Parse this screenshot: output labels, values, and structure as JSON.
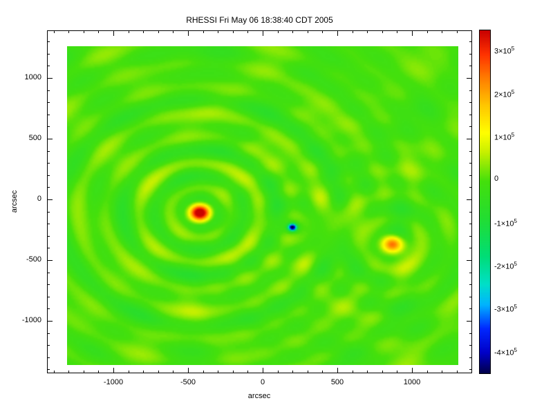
{
  "title": "RHESSI Fri May 06 18:38:40 CDT 2005",
  "axes": {
    "xlabel": "arcsec",
    "ylabel": "arcsec",
    "x_ticks": [
      {
        "label": "-1000",
        "value": -1000
      },
      {
        "label": "-500",
        "value": -500
      },
      {
        "label": "0",
        "value": 0
      },
      {
        "label": "500",
        "value": 500
      },
      {
        "label": "1000",
        "value": 1000
      }
    ],
    "y_ticks": [
      {
        "label": "1000",
        "value": 1000
      },
      {
        "label": "500",
        "value": 500
      },
      {
        "label": "0",
        "value": 0
      },
      {
        "label": "-500",
        "value": -500
      },
      {
        "label": "-1000",
        "value": -1000
      }
    ],
    "minor_step": 100
  },
  "colorbar": {
    "vmin": -450000,
    "vmax": 350000,
    "ticks": [
      {
        "base": "3×10",
        "sup": "5",
        "value": 300000
      },
      {
        "base": "2×10",
        "sup": "5",
        "value": 200000
      },
      {
        "base": "1×10",
        "sup": "5",
        "value": 100000
      },
      {
        "base": "0",
        "sup": "",
        "value": 0
      },
      {
        "base": "-1×10",
        "sup": "5",
        "value": -100000
      },
      {
        "base": "-2×10",
        "sup": "5",
        "value": -200000
      },
      {
        "base": "-3×10",
        "sup": "5",
        "value": -300000
      },
      {
        "base": "-4×10",
        "sup": "5",
        "value": -400000
      }
    ],
    "stops": [
      [
        0.0,
        "#02004a"
      ],
      [
        0.06,
        "#0000c8"
      ],
      [
        0.13,
        "#0028ff"
      ],
      [
        0.2,
        "#00b4ff"
      ],
      [
        0.26,
        "#00e0c8"
      ],
      [
        0.34,
        "#00dd77"
      ],
      [
        0.45,
        "#22dd33"
      ],
      [
        0.56,
        "#44e00c"
      ],
      [
        0.645,
        "#c8f000"
      ],
      [
        0.7,
        "#ffff00"
      ],
      [
        0.78,
        "#ffc800"
      ],
      [
        0.86,
        "#ff7d00"
      ],
      [
        0.93,
        "#ff3200"
      ],
      [
        1.0,
        "#c80000"
      ]
    ]
  },
  "chart_data": {
    "type": "heatmap",
    "title": "RHESSI Fri May 06 18:38:40 CDT 2005",
    "xlabel": "arcsec",
    "ylabel": "arcsec",
    "xlim": [
      -1310,
      1310
    ],
    "ylim": [
      -1360,
      1260
    ],
    "x_tick_values": [
      -1000,
      -500,
      0,
      500,
      1000
    ],
    "y_tick_values": [
      1000,
      500,
      0,
      -500,
      -1000
    ],
    "value_range": [
      -450000,
      350000
    ],
    "colorbar_tick_values": [
      300000,
      200000,
      100000,
      0,
      -100000,
      -200000,
      -300000,
      -400000
    ],
    "background_value": 0,
    "sources": [
      {
        "name": "primary-bright-source",
        "x": -420,
        "y": -110,
        "amplitude": 330000,
        "sigma": 48,
        "rings": [
          {
            "amp": 55000,
            "wavelength": 207,
            "decay": 950
          },
          {
            "amp": 25000,
            "wavelength": 377,
            "decay": 1500
          }
        ]
      },
      {
        "name": "negative-compact-source",
        "x": 200,
        "y": -230,
        "amplitude": -480000,
        "sigma": 20,
        "rings": [
          {
            "amp": -30000,
            "wavelength": 207,
            "decay": 350
          }
        ]
      },
      {
        "name": "secondary-source",
        "x": 870,
        "y": -370,
        "amplitude": 230000,
        "sigma": 52,
        "rings": [
          {
            "amp": 35000,
            "wavelength": 207,
            "decay": 550
          }
        ]
      }
    ],
    "background_mottle": [
      {
        "amp": 22000,
        "xperiod": 150,
        "yperiod": 130,
        "xphase": 1.3,
        "yphase": -0.7
      },
      {
        "amp": 16000,
        "xperiod": 90,
        "yperiod": 110,
        "xphase": -2.1,
        "yphase": 0.4
      }
    ],
    "legend_position": "right-colorbar",
    "grid": false
  }
}
